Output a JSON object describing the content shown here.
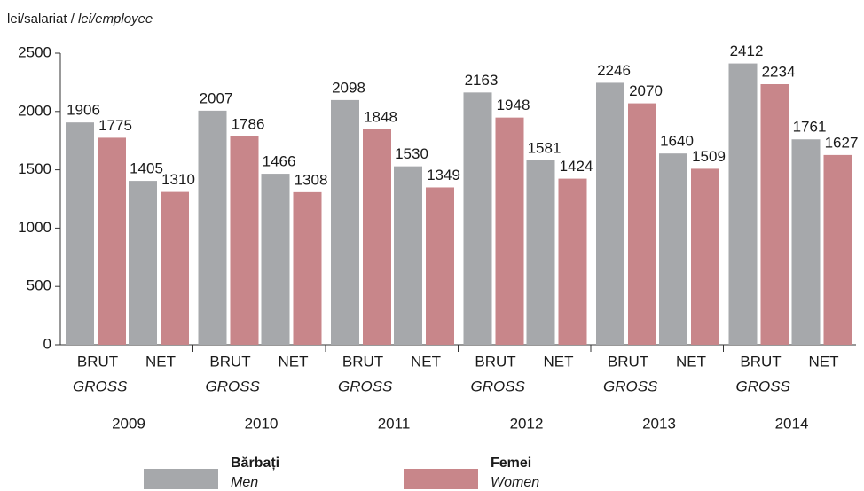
{
  "chart_data": {
    "type": "bar",
    "ylabel": "lei/salariat /",
    "ylabel_en": "lei/employee",
    "groups": [
      "2009",
      "2010",
      "2011",
      "2012",
      "2013",
      "2014"
    ],
    "categories": [
      "BRUT",
      "NET",
      "BRUT",
      "NET",
      "BRUT",
      "NET",
      "BRUT",
      "NET",
      "BRUT",
      "NET",
      "BRUT",
      "NET"
    ],
    "category_sublabels": [
      "GROSS",
      null,
      "GROSS",
      null,
      "GROSS",
      null,
      "GROSS",
      null,
      "GROSS",
      null,
      "GROSS",
      null
    ],
    "series": [
      {
        "name": "Bărbați",
        "name_en": "Men",
        "color": "#a6a8ab",
        "values": [
          1906,
          1405,
          2007,
          1466,
          2098,
          1530,
          2163,
          1581,
          2246,
          1640,
          2412,
          1761
        ]
      },
      {
        "name": "Femei",
        "name_en": "Women",
        "color": "#c8868a",
        "values": [
          1775,
          1310,
          1786,
          1308,
          1848,
          1349,
          1948,
          1424,
          2070,
          1509,
          2234,
          1627
        ]
      }
    ],
    "ylim": [
      0,
      2500
    ],
    "yticks": [
      0,
      500,
      1000,
      1500,
      2000,
      2500
    ],
    "grid": false
  }
}
